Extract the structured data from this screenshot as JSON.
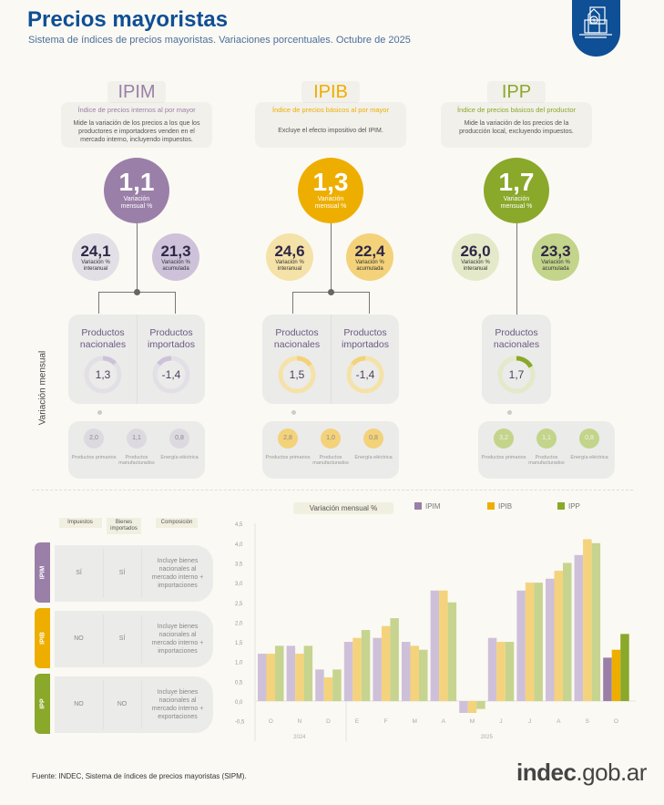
{
  "header": {
    "title": "Precios mayoristas",
    "subtitle": "Sistema de índices de precios mayoristas. Variaciones porcentuales. Octubre de 2025"
  },
  "side_label": "Variación mensual",
  "columns": [
    {
      "name": "IPIM",
      "full": "Índice de precios internos al por mayor",
      "desc": "Mide la variación de los precios a los que los productores e importadores venden en el mercado interno, incluyendo impuestos.",
      "color": "#9a7fa8",
      "light": "#cdc2d9",
      "lighter": "#e3dfe6",
      "monthly": "1,1",
      "monthly_label": "Variación mensual %",
      "interanual": "24,1",
      "interanual_label": "Variación % interanual",
      "acumulada": "21,3",
      "acumulada_label": "Variación % acumulada",
      "products": [
        {
          "label": "Productos nacionales",
          "value": "1,3",
          "frac": 0.13
        },
        {
          "label": "Productos importados",
          "value": "-1,4",
          "frac": -0.14
        }
      ],
      "breakdown": [
        {
          "value": "2,0",
          "label": "Productos primarios"
        },
        {
          "value": "1,1",
          "label": "Productos manufacturados"
        },
        {
          "value": "0,8",
          "label": "Energía eléctrica"
        }
      ]
    },
    {
      "name": "IPIB",
      "full": "Índice de precios básicos al por mayor",
      "desc": "Excluye el efecto impositivo del IPIM.",
      "color": "#eeae00",
      "light": "#f3d27a",
      "lighter": "#f5e2a8",
      "monthly": "1,3",
      "monthly_label": "Variación mensual %",
      "interanual": "24,6",
      "interanual_label": "Variación % interanual",
      "acumulada": "22,4",
      "acumulada_label": "Variación % acumulada",
      "products": [
        {
          "label": "Productos nacionales",
          "value": "1,5",
          "frac": 0.15
        },
        {
          "label": "Productos importados",
          "value": "-1,4",
          "frac": -0.14
        }
      ],
      "breakdown": [
        {
          "value": "2,8",
          "label": "Productos primarios"
        },
        {
          "value": "1,0",
          "label": "Productos manufacturados"
        },
        {
          "value": "0,8",
          "label": "Energía eléctrica"
        }
      ]
    },
    {
      "name": "IPP",
      "full": "Índice de precios básicos del productor",
      "desc": "Mide la variación de los precios de la producción local, excluyendo impuestos.",
      "color": "#8aa82a",
      "light": "#c3d48b",
      "lighter": "#e4e9c9",
      "monthly": "1,7",
      "monthly_label": "Variación mensual %",
      "interanual": "26,0",
      "interanual_label": "Variación % interanual",
      "acumulada": "23,3",
      "acumulada_label": "Variación % acumulada",
      "products": [
        {
          "label": "Productos nacionales",
          "value": "1,7",
          "frac": 0.17
        }
      ],
      "breakdown": [
        {
          "value": "3,2",
          "label": "Productos primarios"
        },
        {
          "value": "1,1",
          "label": "Productos manufacturados"
        },
        {
          "value": "0,8",
          "label": "Energía eléctrica"
        }
      ]
    }
  ],
  "table": {
    "headers": [
      "Impuestos",
      "Bienes importados",
      "Composición"
    ],
    "rows": [
      {
        "index": "IPIM",
        "impuestos": "SÍ",
        "importados": "SÍ",
        "composicion": "Incluye bienes nacionales al mercado interno + importaciones"
      },
      {
        "index": "IPIB",
        "impuestos": "NO",
        "importados": "SÍ",
        "composicion": "Incluye bienes nacionales al mercado interno + importaciones"
      },
      {
        "index": "IPP",
        "impuestos": "NO",
        "importados": "NO",
        "composicion": "Incluye bienes nacionales al mercado interno + exportaciones"
      }
    ]
  },
  "chart_data": {
    "type": "bar",
    "title": "Variación mensual %",
    "categories": [
      "O",
      "N",
      "D",
      "E",
      "F",
      "M",
      "A",
      "M",
      "J",
      "J",
      "A",
      "S",
      "O"
    ],
    "year_labels": [
      {
        "label": "2024",
        "span": [
          0,
          2
        ]
      },
      {
        "label": "2025",
        "span": [
          3,
          12
        ]
      }
    ],
    "series": [
      {
        "name": "IPIM",
        "color": "#9a7fa8",
        "light": "#cfc0d9",
        "values": [
          1.2,
          1.4,
          0.8,
          1.5,
          1.6,
          1.5,
          2.8,
          -0.3,
          1.6,
          2.8,
          3.1,
          3.7,
          1.1
        ]
      },
      {
        "name": "IPIB",
        "color": "#eeae00",
        "light": "#f4d37c",
        "values": [
          1.2,
          1.2,
          0.6,
          1.6,
          1.9,
          1.4,
          2.8,
          -0.3,
          1.5,
          3.0,
          3.3,
          4.1,
          1.3
        ]
      },
      {
        "name": "IPP",
        "color": "#8aa82a",
        "light": "#c6d48f",
        "values": [
          1.4,
          1.4,
          0.8,
          1.8,
          2.1,
          1.3,
          2.5,
          -0.2,
          1.5,
          3.0,
          3.5,
          4.0,
          1.7
        ]
      }
    ],
    "yticks": [
      "4,5",
      "4,0",
      "3,5",
      "3,0",
      "2,5",
      "2,0",
      "1,5",
      "1,0",
      "0,5",
      "0,0",
      "-0,5"
    ],
    "ylim": [
      -0.5,
      4.5
    ],
    "legend": "top"
  },
  "footer": {
    "source": "Fuente: INDEC, Sistema de índices de precios mayoristas (SIPM).",
    "logo_bold": "indec",
    "logo_rest": ".gob.ar"
  }
}
